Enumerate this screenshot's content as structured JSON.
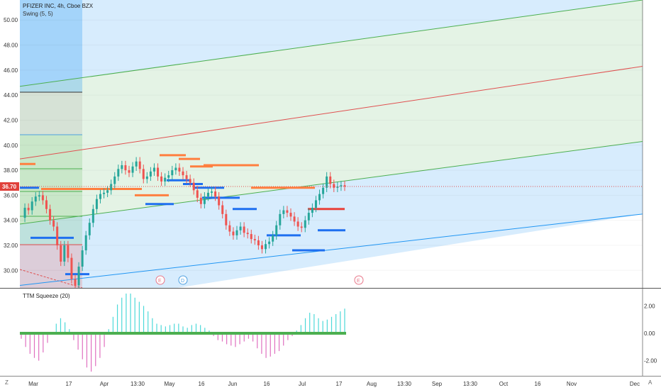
{
  "header": {
    "title": "PFIZER INC, 4h, Cboe BZX",
    "swing_label": "Swing (5, 5)",
    "ttm_label": "TTM Squeeze (20)"
  },
  "price_badge": {
    "value": "36.70",
    "color": "#e0403a"
  },
  "corners": {
    "left": "Z",
    "right": "A"
  },
  "event_markers": [
    {
      "label": "E",
      "x_label": "Apr-late",
      "color": "#e8788a"
    },
    {
      "label": "D",
      "x_label": "May",
      "color": "#4da0e0"
    },
    {
      "label": "E",
      "x_label": "Jul-late",
      "color": "#e8788a"
    }
  ],
  "colors": {
    "channel_outer": "#2196f3",
    "channel_inner": "#4caf50",
    "median": "#e05050",
    "orange_level": "#ff7f3f",
    "blue_level": "#1e6ff0",
    "hist_cyan": "#4dd9d9",
    "hist_pink": "#e070c0",
    "zero_line": "#4caf50"
  },
  "chart_data": [
    {
      "type": "line",
      "title": "PFIZER INC, 4h, Cboe BZX",
      "subtitle": "Swing (5, 5)",
      "x_tick_labels": [
        "Mar",
        "17",
        "Apr",
        "13:30",
        "May",
        "16",
        "Jun",
        "16",
        "Jul",
        "17",
        "Aug",
        "13:30",
        "Sep",
        "13:30",
        "Oct",
        "16",
        "Nov",
        "Dec"
      ],
      "y_tick_labels": [
        "30.00",
        "32.00",
        "34.00",
        "36.00",
        "38.00",
        "40.00",
        "42.00",
        "44.00",
        "46.00",
        "48.00",
        "50.00"
      ],
      "ylim": [
        28.6,
        51.6
      ],
      "last_price": 36.7,
      "series": [
        {
          "x": [
            0,
            1,
            2,
            3,
            4,
            5,
            6,
            7,
            8,
            9,
            10,
            11,
            12,
            13,
            14,
            15,
            16,
            17,
            18,
            19,
            20,
            21,
            22,
            23,
            24,
            25,
            26,
            27,
            28,
            29,
            30,
            31,
            32,
            33,
            34,
            35,
            36,
            37,
            38,
            39,
            40,
            41,
            42,
            43,
            44,
            45,
            46,
            47,
            48,
            49,
            50,
            51,
            52,
            53,
            54,
            55,
            56,
            57,
            58,
            59,
            60,
            61,
            62,
            63,
            64,
            65,
            66,
            67,
            68,
            69,
            70,
            71,
            72,
            73,
            74,
            75,
            76,
            77,
            78,
            79,
            80,
            81,
            82,
            83,
            84,
            85,
            86,
            87,
            88,
            89,
            90
          ],
          "values": [
            34.2,
            35.0,
            34.8,
            35.5,
            35.9,
            36.0,
            35.6,
            34.9,
            34.0,
            33.5,
            32.0,
            30.7,
            32.0,
            31.0,
            29.3,
            28.8,
            30.3,
            31.6,
            32.8,
            33.8,
            34.9,
            35.7,
            36.1,
            36.2,
            36.4,
            36.9,
            37.5,
            38.1,
            38.4,
            38.0,
            37.8,
            38.3,
            38.7,
            38.1,
            37.3,
            37.5,
            37.9,
            38.2,
            37.5,
            37.1,
            37.4,
            37.6,
            38.0,
            38.2,
            37.9,
            37.6,
            37.3,
            37.0,
            36.4,
            35.8,
            35.3,
            35.9,
            36.2,
            36.3,
            35.9,
            35.2,
            34.5,
            33.6,
            33.1,
            32.8,
            33.2,
            33.5,
            33.0,
            32.9,
            32.5,
            32.4,
            32.0,
            31.7,
            32.1,
            32.3,
            32.8,
            33.6,
            34.5,
            34.8,
            34.6,
            34.3,
            33.9,
            33.5,
            33.4,
            34.0,
            34.6,
            35.0,
            35.6,
            36.1,
            36.6,
            37.5,
            36.9,
            36.6,
            36.7,
            36.8,
            36.7
          ]
        }
      ],
      "swing_highs": [
        38.5,
        36.5,
        36.0,
        39.2,
        38.9,
        38.3,
        38.4,
        36.6,
        34.9
      ],
      "swing_lows": [
        36.6,
        32.6,
        29.7,
        35.3,
        37.2,
        36.9,
        36.6,
        35.8,
        34.9,
        32.8,
        31.6,
        33.2
      ],
      "pitchfork": {
        "outer_top_start": 44.7,
        "outer_top_end": 51.6,
        "inner_top_start": 38.9,
        "inner_top_end": 46.3,
        "median_start": 33.7,
        "median_end": 40.3,
        "inner_bottom_start": 28.6,
        "inner_bottom_end": 34.5
      }
    },
    {
      "type": "bar",
      "title": "TTM Squeeze (20)",
      "y_tick_labels": [
        "2.00",
        "0.00",
        "-2.00"
      ],
      "ylim": [
        -2.9,
        2.9
      ],
      "values": [
        -0.4,
        -1.0,
        -1.5,
        -1.8,
        -2.0,
        -1.4,
        -0.7,
        0.1,
        0.7,
        1.1,
        0.8,
        0.3,
        -0.5,
        -1.2,
        -1.9,
        -2.5,
        -2.8,
        -2.4,
        -1.8,
        -1.0,
        0.3,
        1.2,
        2.1,
        2.6,
        2.9,
        2.9,
        2.6,
        2.3,
        2.0,
        1.6,
        1.1,
        0.7,
        0.6,
        0.5,
        0.6,
        0.7,
        0.7,
        0.5,
        0.4,
        0.6,
        0.7,
        0.6,
        0.4,
        0.2,
        -0.2,
        -0.5,
        -0.6,
        -0.8,
        -0.9,
        -1.0,
        -0.8,
        -0.6,
        -0.4,
        -0.6,
        -1.1,
        -1.5,
        -1.8,
        -1.7,
        -1.5,
        -1.3,
        -0.9,
        -0.5,
        -0.2,
        0.2,
        0.6,
        1.1,
        1.5,
        1.4,
        1.1,
        0.9,
        1.0,
        1.2,
        1.4,
        1.6,
        1.8
      ],
      "zero_line": 0
    }
  ]
}
